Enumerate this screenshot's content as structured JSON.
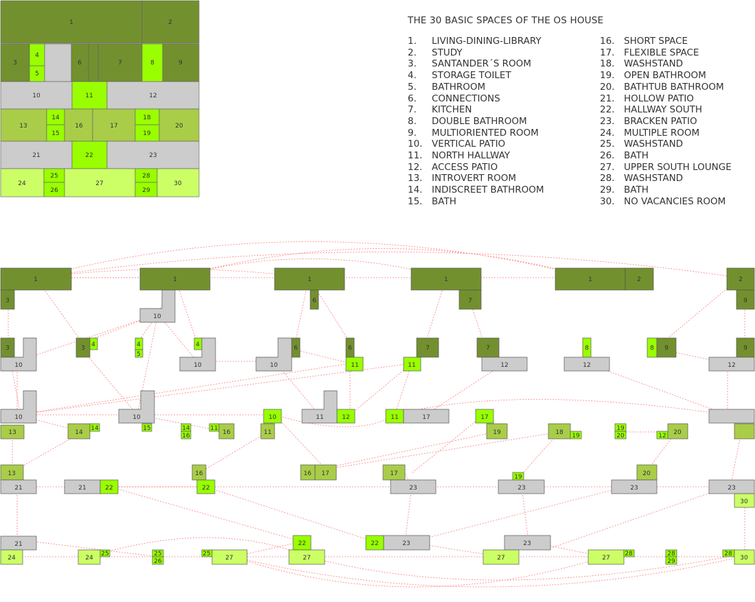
{
  "title": "THE 30 BASIC SPACES OF THE OS HOUSE",
  "colors": {
    "dark_green": "#73902f",
    "mid_green": "#a9cd48",
    "bright_green": "#99ff00",
    "light_green": "#ccff66",
    "gray": "#cccccc",
    "link": "#ff6666"
  },
  "legend": [
    {
      "num": "1.",
      "name": "LIVING-DINING-LIBRARY"
    },
    {
      "num": "2.",
      "name": "STUDY"
    },
    {
      "num": "3.",
      "name": "SANTANDER´S ROOM"
    },
    {
      "num": "4.",
      "name": "STORAGE TOILET"
    },
    {
      "num": "5.",
      "name": "BATHROOM"
    },
    {
      "num": "6.",
      "name": "CONNECTIONS"
    },
    {
      "num": "7.",
      "name": "KITCHEN"
    },
    {
      "num": "8.",
      "name": "DOUBLE BATHROOM"
    },
    {
      "num": "9.",
      "name": "MULTIORIENTED ROOM"
    },
    {
      "num": "10.",
      "name": "VERTICAL PATIO"
    },
    {
      "num": "11.",
      "name": "NORTH HALLWAY"
    },
    {
      "num": "12.",
      "name": "ACCESS PATIO"
    },
    {
      "num": "13.",
      "name": "INTROVERT ROOM"
    },
    {
      "num": "14.",
      "name": "INDISCREET BATHROOM"
    },
    {
      "num": "15.",
      "name": "BATH"
    },
    {
      "num": "16.",
      "name": "SHORT SPACE"
    },
    {
      "num": "17.",
      "name": "FLEXIBLE SPACE"
    },
    {
      "num": "18.",
      "name": "WASHSTAND"
    },
    {
      "num": "19.",
      "name": "OPEN BATHROOM"
    },
    {
      "num": "20.",
      "name": "BATHTUB BATHROOM"
    },
    {
      "num": "21.",
      "name": "HOLLOW PATIO"
    },
    {
      "num": "22.",
      "name": "HALLWAY SOUTH"
    },
    {
      "num": "23.",
      "name": "BRACKEN PATIO"
    },
    {
      "num": "24.",
      "name": "MULTIPLE ROOM"
    },
    {
      "num": "25.",
      "name": "WASHSTAND"
    },
    {
      "num": "26.",
      "name": "BATH"
    },
    {
      "num": "27.",
      "name": "UPPER SOUTH LOUNGE"
    },
    {
      "num": "28.",
      "name": "WASHSTAND"
    },
    {
      "num": "29.",
      "name": "BATH"
    },
    {
      "num": "30.",
      "name": "NO VACANCIES ROOM"
    }
  ],
  "plan_labels": [
    "1",
    "2",
    "3",
    "4",
    "5",
    "6",
    "7",
    "8",
    "9",
    "10",
    "11",
    "12",
    "13",
    "14",
    "15",
    "16",
    "17",
    "18",
    "19",
    "20",
    "21",
    "22",
    "23",
    "24",
    "25",
    "26",
    "27",
    "28",
    "29",
    "30"
  ],
  "graph_labels": {
    "row1": [
      "1",
      "3",
      "1",
      "10",
      "1",
      "6",
      "1",
      "7",
      "1",
      "2",
      "2",
      "9"
    ],
    "row2": [
      "3",
      "10",
      "3",
      "4",
      "4",
      "5",
      "4",
      "10",
      "6",
      "10",
      "6",
      "11",
      "7",
      "11",
      "7",
      "12",
      "8",
      "12",
      "8",
      "9",
      "9",
      "12"
    ],
    "row3": [
      "10",
      "13",
      "10",
      "14",
      "14",
      "15",
      "14",
      "16",
      "11",
      "16",
      "10",
      "11",
      "11",
      "12",
      "11",
      "17",
      "17",
      "19",
      "18",
      "19",
      "19",
      "20",
      "12",
      "20"
    ],
    "row4": [
      "13",
      "21",
      "21",
      "22",
      "16",
      "22",
      "16",
      "17",
      "17",
      "23",
      "19",
      "23",
      "20",
      "23",
      "23",
      "30"
    ],
    "row5": [
      "21",
      "24",
      "24",
      "25",
      "25",
      "26",
      "25",
      "27",
      "22",
      "27",
      "22",
      "23",
      "23",
      "27",
      "27",
      "28",
      "28",
      "29",
      "28",
      "30"
    ]
  }
}
